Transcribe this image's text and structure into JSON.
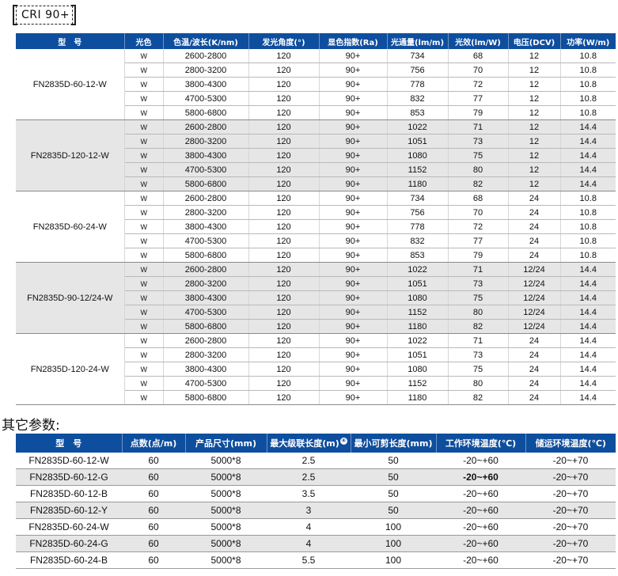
{
  "badge": {
    "label": "CRI 90+"
  },
  "main_table": {
    "headers": [
      "型　号",
      "光色",
      "色温/波长(K/nm)",
      "发光角度(°)",
      "显色指数(Ra)",
      "光通量(lm/m)",
      "光效(lm/W)",
      "电压(DCV)",
      "功率(W/m)"
    ],
    "groups": [
      {
        "model": "FN2835D-60-12-W",
        "rows": [
          [
            "W",
            "2600-2800",
            "120",
            "90+",
            "734",
            "68",
            "12",
            "10.8"
          ],
          [
            "W",
            "2800-3200",
            "120",
            "90+",
            "756",
            "70",
            "12",
            "10.8"
          ],
          [
            "W",
            "3800-4300",
            "120",
            "90+",
            "778",
            "72",
            "12",
            "10.8"
          ],
          [
            "W",
            "4700-5300",
            "120",
            "90+",
            "832",
            "77",
            "12",
            "10.8"
          ],
          [
            "W",
            "5800-6800",
            "120",
            "90+",
            "853",
            "79",
            "12",
            "10.8"
          ]
        ]
      },
      {
        "model": "FN2835D-120-12-W",
        "rows": [
          [
            "W",
            "2600-2800",
            "120",
            "90+",
            "1022",
            "71",
            "12",
            "14.4"
          ],
          [
            "W",
            "2800-3200",
            "120",
            "90+",
            "1051",
            "73",
            "12",
            "14.4"
          ],
          [
            "W",
            "3800-4300",
            "120",
            "90+",
            "1080",
            "75",
            "12",
            "14.4"
          ],
          [
            "W",
            "4700-5300",
            "120",
            "90+",
            "1152",
            "80",
            "12",
            "14.4"
          ],
          [
            "W",
            "5800-6800",
            "120",
            "90+",
            "1180",
            "82",
            "12",
            "14.4"
          ]
        ]
      },
      {
        "model": "FN2835D-60-24-W",
        "rows": [
          [
            "W",
            "2600-2800",
            "120",
            "90+",
            "734",
            "68",
            "24",
            "10.8"
          ],
          [
            "W",
            "2800-3200",
            "120",
            "90+",
            "756",
            "70",
            "24",
            "10.8"
          ],
          [
            "W",
            "3800-4300",
            "120",
            "90+",
            "778",
            "72",
            "24",
            "10.8"
          ],
          [
            "W",
            "4700-5300",
            "120",
            "90+",
            "832",
            "77",
            "24",
            "10.8"
          ],
          [
            "W",
            "5800-6800",
            "120",
            "90+",
            "853",
            "79",
            "24",
            "10.8"
          ]
        ]
      },
      {
        "model": "FN2835D-90-12/24-W",
        "rows": [
          [
            "W",
            "2600-2800",
            "120",
            "90+",
            "1022",
            "71",
            "12/24",
            "14.4"
          ],
          [
            "W",
            "2800-3200",
            "120",
            "90+",
            "1051",
            "73",
            "12/24",
            "14.4"
          ],
          [
            "W",
            "3800-4300",
            "120",
            "90+",
            "1080",
            "75",
            "12/24",
            "14.4"
          ],
          [
            "W",
            "4700-5300",
            "120",
            "90+",
            "1152",
            "80",
            "12/24",
            "14.4"
          ],
          [
            "W",
            "5800-6800",
            "120",
            "90+",
            "1180",
            "82",
            "12/24",
            "14.4"
          ]
        ]
      },
      {
        "model": "FN2835D-120-24-W",
        "rows": [
          [
            "W",
            "2600-2800",
            "120",
            "90+",
            "1022",
            "71",
            "24",
            "14.4"
          ],
          [
            "W",
            "2800-3200",
            "120",
            "90+",
            "1051",
            "73",
            "24",
            "14.4"
          ],
          [
            "W",
            "3800-4300",
            "120",
            "90+",
            "1080",
            "75",
            "24",
            "14.4"
          ],
          [
            "W",
            "4700-5300",
            "120",
            "90+",
            "1152",
            "80",
            "24",
            "14.4"
          ],
          [
            "W",
            "5800-6800",
            "120",
            "90+",
            "1180",
            "82",
            "24",
            "14.4"
          ]
        ]
      }
    ]
  },
  "other_section": {
    "title": "其它参数:",
    "headers": [
      "型　号",
      "点数(点/m)",
      "产品尺寸(mm)",
      "最大级联长度(m)",
      "最小可剪长度(mm)",
      "工作环境温度(℃)",
      "储运环境温度(℃)"
    ],
    "header_note_mark": "④",
    "rows": [
      [
        "FN2835D-60-12-W",
        "60",
        "5000*8",
        "2.5",
        "50",
        "-20~+60",
        "-20~+70"
      ],
      [
        "FN2835D-60-12-G",
        "60",
        "5000*8",
        "2.5",
        "50",
        "-20~+60",
        "-20~+70"
      ],
      [
        "FN2835D-60-12-B",
        "60",
        "5000*8",
        "3.5",
        "50",
        "-20~+60",
        "-20~+70"
      ],
      [
        "FN2835D-60-12-Y",
        "60",
        "5000*8",
        "3",
        "50",
        "-20~+60",
        "-20~+70"
      ],
      [
        "FN2835D-60-24-W",
        "60",
        "5000*8",
        "4",
        "100",
        "-20~+60",
        "-20~+70"
      ],
      [
        "FN2835D-60-24-G",
        "60",
        "5000*8",
        "4",
        "100",
        "-20~+60",
        "-20~+70"
      ],
      [
        "FN2835D-60-24-B",
        "60",
        "5000*8",
        "5.5",
        "100",
        "-20~+60",
        "-20~+70"
      ]
    ]
  },
  "colors": {
    "header_bg": "#0e4e9e",
    "shade": "#e6e6e6"
  }
}
